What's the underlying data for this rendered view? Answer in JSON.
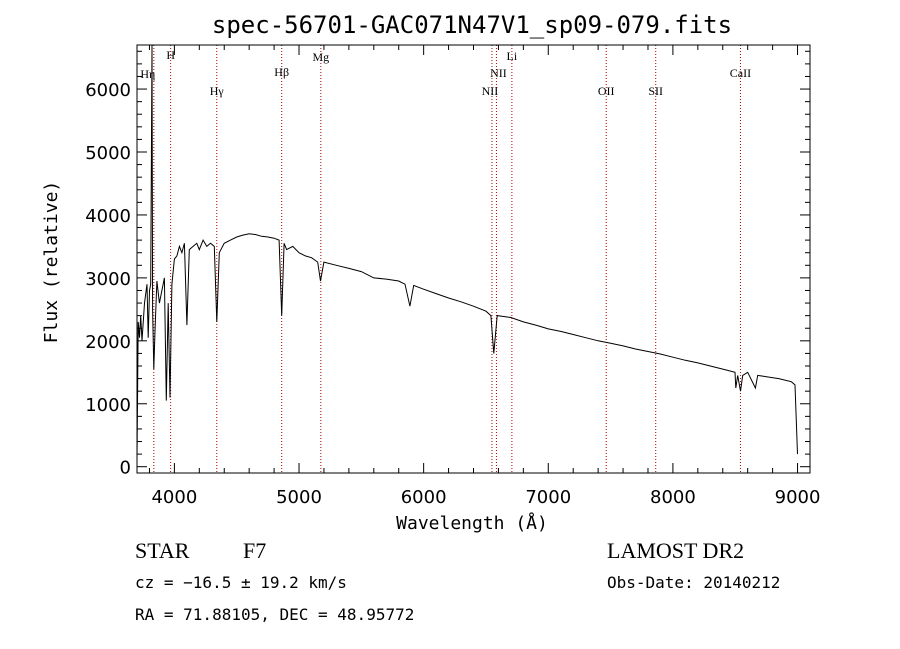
{
  "chart_data": {
    "type": "line",
    "title": "spec-56701-GAC071N47V1_sp09-079.fits",
    "xlabel": "Wavelength (Å)",
    "ylabel": "Flux (relative)",
    "xlim": [
      3700,
      9100
    ],
    "ylim": [
      -100,
      6700
    ],
    "xticks": [
      4000,
      5000,
      6000,
      7000,
      8000,
      9000
    ],
    "yticks": [
      0,
      1000,
      2000,
      3000,
      4000,
      5000,
      6000
    ],
    "grid": false,
    "line_color": "#000000",
    "marker_color": "#b00000",
    "series": [
      {
        "points": [
          [
            3700,
            100
          ],
          [
            3710,
            2300
          ],
          [
            3720,
            2050
          ],
          [
            3730,
            2400
          ],
          [
            3740,
            2000
          ],
          [
            3760,
            2600
          ],
          [
            3780,
            2900
          ],
          [
            3790,
            2050
          ],
          [
            3800,
            2800
          ],
          [
            3810,
            2900
          ],
          [
            3820,
            6700
          ],
          [
            3825,
            2500
          ],
          [
            3835,
            1550
          ],
          [
            3845,
            2200
          ],
          [
            3860,
            2950
          ],
          [
            3880,
            2600
          ],
          [
            3900,
            2800
          ],
          [
            3920,
            3000
          ],
          [
            3935,
            1050
          ],
          [
            3950,
            2600
          ],
          [
            3965,
            1100
          ],
          [
            3980,
            2900
          ],
          [
            4000,
            3300
          ],
          [
            4020,
            3350
          ],
          [
            4040,
            3500
          ],
          [
            4060,
            3400
          ],
          [
            4080,
            3550
          ],
          [
            4100,
            2250
          ],
          [
            4120,
            3450
          ],
          [
            4150,
            3500
          ],
          [
            4180,
            3550
          ],
          [
            4200,
            3450
          ],
          [
            4230,
            3600
          ],
          [
            4260,
            3500
          ],
          [
            4290,
            3550
          ],
          [
            4320,
            3500
          ],
          [
            4340,
            2300
          ],
          [
            4360,
            3400
          ],
          [
            4400,
            3550
          ],
          [
            4450,
            3600
          ],
          [
            4500,
            3650
          ],
          [
            4550,
            3680
          ],
          [
            4600,
            3700
          ],
          [
            4650,
            3690
          ],
          [
            4700,
            3660
          ],
          [
            4750,
            3650
          ],
          [
            4800,
            3630
          ],
          [
            4840,
            3600
          ],
          [
            4861,
            2400
          ],
          [
            4880,
            3550
          ],
          [
            4900,
            3450
          ],
          [
            4950,
            3500
          ],
          [
            5000,
            3400
          ],
          [
            5050,
            3350
          ],
          [
            5100,
            3320
          ],
          [
            5150,
            3250
          ],
          [
            5172,
            2950
          ],
          [
            5200,
            3250
          ],
          [
            5300,
            3200
          ],
          [
            5400,
            3150
          ],
          [
            5500,
            3100
          ],
          [
            5600,
            3000
          ],
          [
            5700,
            2980
          ],
          [
            5800,
            2950
          ],
          [
            5850,
            2900
          ],
          [
            5890,
            2550
          ],
          [
            5920,
            2880
          ],
          [
            6000,
            2820
          ],
          [
            6100,
            2750
          ],
          [
            6200,
            2680
          ],
          [
            6300,
            2620
          ],
          [
            6400,
            2550
          ],
          [
            6500,
            2470
          ],
          [
            6540,
            2400
          ],
          [
            6563,
            1800
          ],
          [
            6590,
            2400
          ],
          [
            6700,
            2370
          ],
          [
            6800,
            2300
          ],
          [
            6900,
            2250
          ],
          [
            7000,
            2190
          ],
          [
            7100,
            2150
          ],
          [
            7200,
            2100
          ],
          [
            7300,
            2050
          ],
          [
            7400,
            2000
          ],
          [
            7500,
            1960
          ],
          [
            7600,
            1920
          ],
          [
            7700,
            1870
          ],
          [
            7800,
            1830
          ],
          [
            7900,
            1790
          ],
          [
            8000,
            1740
          ],
          [
            8100,
            1690
          ],
          [
            8200,
            1650
          ],
          [
            8300,
            1600
          ],
          [
            8400,
            1550
          ],
          [
            8498,
            1500
          ],
          [
            8505,
            1250
          ],
          [
            8520,
            1450
          ],
          [
            8542,
            1200
          ],
          [
            8560,
            1450
          ],
          [
            8600,
            1500
          ],
          [
            8662,
            1250
          ],
          [
            8680,
            1450
          ],
          [
            8750,
            1430
          ],
          [
            8850,
            1400
          ],
          [
            8950,
            1350
          ],
          [
            8980,
            1300
          ],
          [
            9000,
            200
          ]
        ]
      }
    ],
    "line_markers": [
      {
        "label": "H",
        "wavelength": 3970
      },
      {
        "label": "Hη",
        "wavelength": 3835
      },
      {
        "label": "Hγ",
        "wavelength": 4340
      },
      {
        "label": "Hβ",
        "wavelength": 4861
      },
      {
        "label": "Mg",
        "wavelength": 5175
      },
      {
        "label": "NII",
        "wavelength": 6584
      },
      {
        "label": "NII",
        "wavelength": 6548
      },
      {
        "label": "Li",
        "wavelength": 6708
      },
      {
        "label": "OII",
        "wavelength": 7465
      },
      {
        "label": "SII",
        "wavelength": 7862
      },
      {
        "label": "CaII",
        "wavelength": 8542
      }
    ]
  },
  "info": {
    "class_type": "STAR",
    "subclass": "F7",
    "cz": "cz = −16.5 ± 19.2 km/s",
    "radec": "RA =  71.88105, DEC =  48.95772",
    "survey": "LAMOST DR2",
    "obs_date": "Obs-Date: 20140212"
  }
}
